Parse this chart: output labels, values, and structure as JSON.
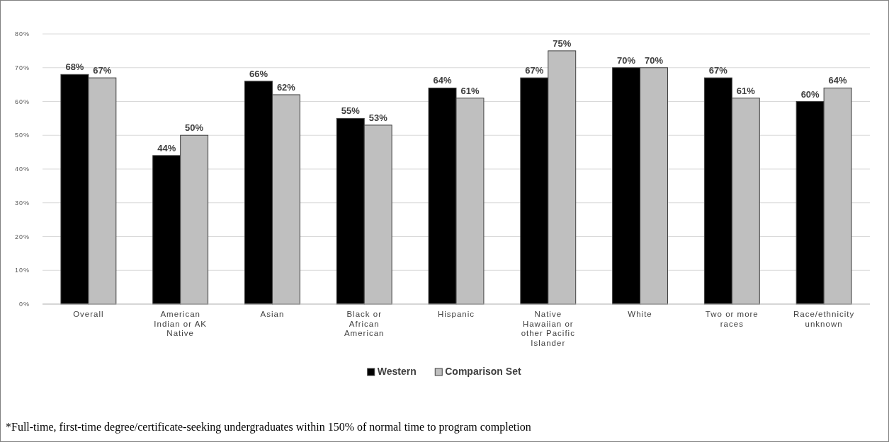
{
  "chart_data": {
    "type": "bar",
    "categories": [
      "Overall",
      "American Indian or AK Native",
      "Asian",
      "Black or African American",
      "Hispanic",
      "Native Hawaiian or other Pacific Islander",
      "White",
      "Two or more races",
      "Race/ethnicity unknown"
    ],
    "series": [
      {
        "name": "Western",
        "color": "#000000",
        "values": [
          68,
          44,
          66,
          55,
          64,
          67,
          70,
          67,
          60
        ],
        "value_labels": [
          "68%",
          "44%",
          "66%",
          "55%",
          "64%",
          "67%",
          "70%",
          "67%",
          "60%"
        ]
      },
      {
        "name": "Comparison Set",
        "color": "#bfbfbf",
        "values": [
          67,
          50,
          62,
          53,
          61,
          75,
          70,
          61,
          64
        ],
        "value_labels": [
          "67%",
          "50%",
          "62%",
          "53%",
          "61%",
          "75%",
          "70%",
          "61%",
          "64%"
        ]
      }
    ],
    "ylim": [
      0,
      80
    ],
    "yticks": [
      {
        "value": 0,
        "label": "0%"
      },
      {
        "value": 10,
        "label": "10%"
      },
      {
        "value": 20,
        "label": "20%"
      },
      {
        "value": 30,
        "label": "30%"
      },
      {
        "value": 40,
        "label": "40%"
      },
      {
        "value": 50,
        "label": "50%"
      },
      {
        "value": 60,
        "label": "60%"
      },
      {
        "value": 70,
        "label": "70%"
      },
      {
        "value": 80,
        "label": "80%"
      }
    ],
    "grid": "y",
    "legend": "bottom",
    "annotations": [
      "*Full-time, first-time degree/certificate-seeking undergraduates within 150% of normal time to program completion"
    ]
  }
}
